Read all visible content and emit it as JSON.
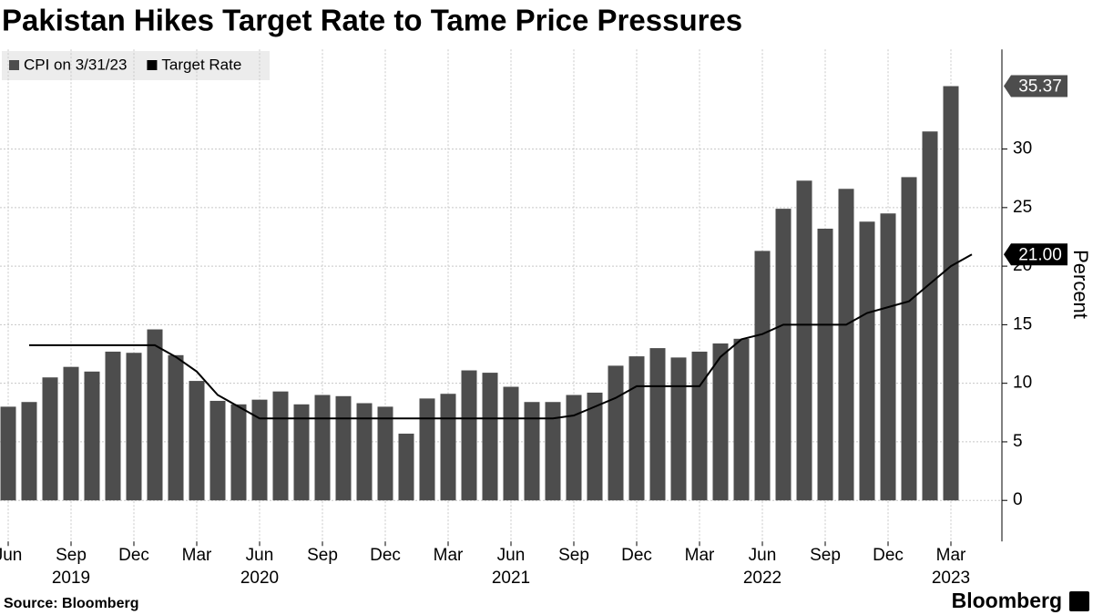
{
  "chart_data": {
    "type": "bar",
    "title": "Pakistan Hikes Target Rate to Tame Price Pressures",
    "source": "Source: Bloomberg",
    "logo": "Bloomberg",
    "y_label": "Percent",
    "categories": [
      "Jun",
      null,
      null,
      "Sep",
      null,
      null,
      "Dec",
      null,
      null,
      "Mar",
      null,
      null,
      "Jun",
      null,
      null,
      "Sep",
      null,
      null,
      "Dec",
      null,
      null,
      "Mar",
      null,
      null,
      "Jun",
      null,
      null,
      "Sep",
      null,
      null,
      "Dec",
      null,
      null,
      "Mar",
      null,
      null,
      "Jun",
      null,
      null,
      "Sep",
      null,
      null,
      "Dec",
      null,
      null,
      "Mar",
      null
    ],
    "category_years": [
      null,
      null,
      null,
      "2019",
      null,
      null,
      null,
      null,
      null,
      null,
      null,
      null,
      "2020",
      null,
      null,
      null,
      null,
      null,
      null,
      null,
      null,
      null,
      null,
      null,
      "2021",
      null,
      null,
      null,
      null,
      null,
      null,
      null,
      null,
      null,
      null,
      null,
      "2022",
      null,
      null,
      null,
      null,
      null,
      null,
      null,
      null,
      "2023",
      null
    ],
    "series": [
      {
        "name": "CPI on 3/31/23",
        "type": "bar",
        "color": "#4d4d4d",
        "values": [
          8.0,
          8.4,
          10.5,
          11.4,
          11.0,
          12.7,
          12.6,
          14.6,
          12.4,
          10.2,
          8.5,
          8.2,
          8.6,
          9.3,
          8.2,
          9.0,
          8.9,
          8.3,
          8.0,
          5.7,
          8.7,
          9.1,
          11.1,
          10.9,
          9.7,
          8.4,
          8.4,
          9.0,
          9.2,
          11.5,
          12.3,
          13.0,
          12.2,
          12.7,
          13.4,
          13.8,
          21.3,
          24.9,
          27.3,
          23.2,
          26.6,
          23.8,
          24.5,
          27.6,
          31.5,
          35.37,
          null
        ],
        "value_labels": [
          null,
          null,
          null,
          null,
          null,
          null,
          null,
          null,
          null,
          null,
          null,
          null,
          null,
          null,
          null,
          null,
          null,
          null,
          null,
          null,
          null,
          null,
          null,
          null,
          null,
          null,
          null,
          null,
          null,
          null,
          null,
          null,
          null,
          null,
          null,
          null,
          null,
          null,
          null,
          null,
          null,
          null,
          null,
          null,
          null,
          "35.37",
          null
        ]
      },
      {
        "name": "Target Rate",
        "type": "line",
        "color": "#000000",
        "values": [
          null,
          13.25,
          13.25,
          13.25,
          13.25,
          13.25,
          13.25,
          13.25,
          12.25,
          11,
          9,
          8,
          7,
          7,
          7,
          7,
          7,
          7,
          7,
          7,
          7,
          7,
          7,
          7,
          7,
          7,
          7,
          7.25,
          8,
          8.75,
          9.75,
          9.75,
          9.75,
          9.75,
          12.25,
          13.75,
          14.2,
          15,
          15,
          15,
          15,
          16,
          16.5,
          17,
          18.5,
          20,
          21
        ],
        "value_labels": [
          null,
          null,
          null,
          null,
          null,
          null,
          null,
          null,
          null,
          null,
          null,
          null,
          null,
          null,
          null,
          null,
          null,
          null,
          null,
          null,
          null,
          null,
          null,
          null,
          null,
          null,
          null,
          null,
          null,
          null,
          null,
          null,
          null,
          null,
          null,
          null,
          null,
          null,
          null,
          null,
          null,
          null,
          null,
          null,
          null,
          null,
          "21.00"
        ]
      }
    ],
    "ylim": [
      -3.5,
      38.5
    ],
    "yticks": [
      0,
      5,
      10,
      15,
      20,
      25,
      30
    ],
    "grid": true
  }
}
